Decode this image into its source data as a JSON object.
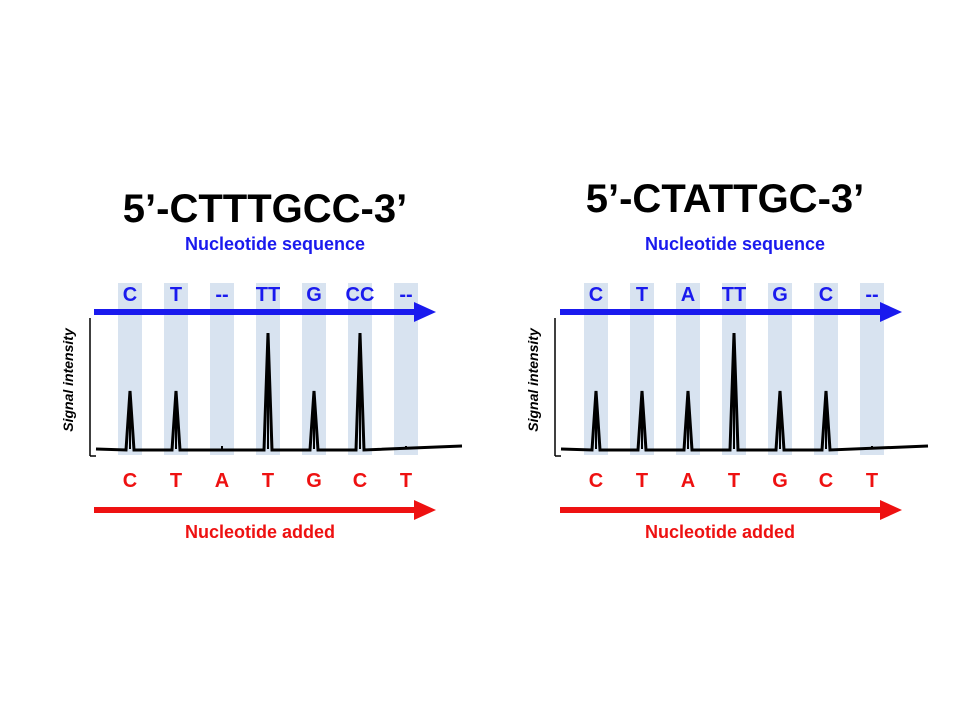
{
  "colors": {
    "sequence_blue": "#1a1aee",
    "added_red": "#ee1111",
    "column_band": "#d8e3f0",
    "trace": "#000000",
    "title": "#000000"
  },
  "panels": [
    {
      "title": "5’-CTTTGCC-3’",
      "sequence_label": "Nucleotide sequence",
      "added_label": "Nucleotide added",
      "y_axis_label": "Signal intensity",
      "columns": [
        {
          "sequence": "C",
          "added": "C",
          "peak": 1
        },
        {
          "sequence": "T",
          "added": "T",
          "peak": 1
        },
        {
          "sequence": "--",
          "added": "A",
          "peak": 0
        },
        {
          "sequence": "TT",
          "added": "T",
          "peak": 2
        },
        {
          "sequence": "G",
          "added": "G",
          "peak": 1
        },
        {
          "sequence": "CC",
          "added": "C",
          "peak": 2
        },
        {
          "sequence": "--",
          "added": "T",
          "peak": 0
        }
      ]
    },
    {
      "title": "5’-CTATTGC-3’",
      "sequence_label": "Nucleotide sequence",
      "added_label": "Nucleotide added",
      "y_axis_label": "Signal intensity",
      "columns": [
        {
          "sequence": "C",
          "added": "C",
          "peak": 1
        },
        {
          "sequence": "T",
          "added": "T",
          "peak": 1
        },
        {
          "sequence": "A",
          "added": "A",
          "peak": 1
        },
        {
          "sequence": "TT",
          "added": "T",
          "peak": 2
        },
        {
          "sequence": "G",
          "added": "G",
          "peak": 1
        },
        {
          "sequence": "C",
          "added": "C",
          "peak": 1
        },
        {
          "sequence": "--",
          "added": "T",
          "peak": 0
        }
      ]
    }
  ]
}
